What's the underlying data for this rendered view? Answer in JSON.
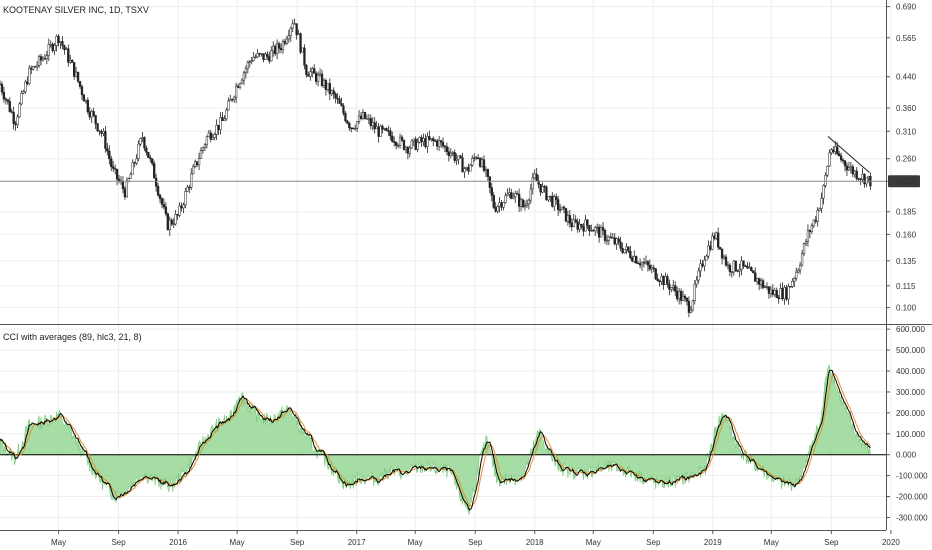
{
  "chart_data": [
    {
      "type": "candlestick",
      "title": "KOOTENAY SILVER INC, 1D, TSXV",
      "y_scale": "log",
      "ylim": [
        0.09,
        0.72
      ],
      "y_ticks": [
        "0.690",
        "0.565",
        "0.440",
        "0.360",
        "0.310",
        "0.260",
        "0.225",
        "0.185",
        "0.160",
        "0.135",
        "0.115",
        "0.100"
      ],
      "current_price": 0.225,
      "current_price_label": "0.225",
      "x_tick_labels": [
        "May",
        "Sep",
        "2016",
        "May",
        "Sep",
        "2017",
        "May",
        "Sep",
        "2018",
        "May",
        "Sep",
        "2019",
        "May",
        "Sep",
        "2020"
      ],
      "x_tick_dates": [
        "2015-05-01",
        "2015-09-01",
        "2016-01-01",
        "2016-05-01",
        "2016-09-01",
        "2017-01-01",
        "2017-05-01",
        "2017-09-01",
        "2018-01-01",
        "2018-05-01",
        "2018-09-01",
        "2019-01-01",
        "2019-05-01",
        "2019-09-01",
        "2020-01-01"
      ],
      "x_range": [
        "2015-01-01",
        "2019-12-22"
      ],
      "trendline": {
        "start": [
          "2019-08-25",
          0.3
        ],
        "end": [
          "2019-11-18",
          0.238
        ]
      },
      "price_path": [
        [
          "2015-01-01",
          0.42
        ],
        [
          "2015-02-01",
          0.33
        ],
        [
          "2015-03-01",
          0.45
        ],
        [
          "2015-04-01",
          0.5
        ],
        [
          "2015-05-01",
          0.57
        ],
        [
          "2015-06-01",
          0.46
        ],
        [
          "2015-07-01",
          0.36
        ],
        [
          "2015-08-01",
          0.3
        ],
        [
          "2015-08-20",
          0.24
        ],
        [
          "2015-09-15",
          0.21
        ],
        [
          "2015-10-20",
          0.3
        ],
        [
          "2015-11-15",
          0.23
        ],
        [
          "2015-12-10",
          0.17
        ],
        [
          "2016-01-01",
          0.18
        ],
        [
          "2016-02-01",
          0.24
        ],
        [
          "2016-03-01",
          0.3
        ],
        [
          "2016-04-01",
          0.33
        ],
        [
          "2016-05-01",
          0.42
        ],
        [
          "2016-06-01",
          0.5
        ],
        [
          "2016-07-01",
          0.5
        ],
        [
          "2016-08-01",
          0.54
        ],
        [
          "2016-08-25",
          0.64
        ],
        [
          "2016-09-20",
          0.46
        ],
        [
          "2016-10-20",
          0.43
        ],
        [
          "2016-11-20",
          0.38
        ],
        [
          "2016-12-20",
          0.32
        ],
        [
          "2017-01-15",
          0.34
        ],
        [
          "2017-02-15",
          0.31
        ],
        [
          "2017-03-15",
          0.3
        ],
        [
          "2017-04-15",
          0.28
        ],
        [
          "2017-05-15",
          0.29
        ],
        [
          "2017-06-15",
          0.29
        ],
        [
          "2017-07-15",
          0.27
        ],
        [
          "2017-08-15",
          0.24
        ],
        [
          "2017-09-05",
          0.27
        ],
        [
          "2017-09-25",
          0.23
        ],
        [
          "2017-10-10",
          0.19
        ],
        [
          "2017-11-15",
          0.21
        ],
        [
          "2017-12-10",
          0.19
        ],
        [
          "2018-01-01",
          0.23
        ],
        [
          "2018-01-20",
          0.21
        ],
        [
          "2018-02-20",
          0.19
        ],
        [
          "2018-03-20",
          0.17
        ],
        [
          "2018-04-20",
          0.17
        ],
        [
          "2018-05-20",
          0.16
        ],
        [
          "2018-06-20",
          0.15
        ],
        [
          "2018-07-20",
          0.14
        ],
        [
          "2018-08-20",
          0.13
        ],
        [
          "2018-09-20",
          0.12
        ],
        [
          "2018-10-20",
          0.11
        ],
        [
          "2018-11-15",
          0.1
        ],
        [
          "2018-12-15",
          0.14
        ],
        [
          "2019-01-05",
          0.16
        ],
        [
          "2019-02-01",
          0.13
        ],
        [
          "2019-03-01",
          0.13
        ],
        [
          "2019-04-01",
          0.12
        ],
        [
          "2019-05-01",
          0.11
        ],
        [
          "2019-06-01",
          0.11
        ],
        [
          "2019-06-25",
          0.13
        ],
        [
          "2019-07-15",
          0.16
        ],
        [
          "2019-08-01",
          0.18
        ],
        [
          "2019-08-15",
          0.21
        ],
        [
          "2019-08-30",
          0.28
        ],
        [
          "2019-09-20",
          0.26
        ],
        [
          "2019-10-15",
          0.24
        ],
        [
          "2019-11-20",
          0.225
        ]
      ]
    },
    {
      "type": "area",
      "title": "CCI with averages (89, hlc3, 21, 8)",
      "ylim": [
        -360,
        620
      ],
      "y_ticks": [
        "600.000",
        "500.000",
        "400.000",
        "300.000",
        "200.000",
        "100.000",
        "0.000",
        "-100.000",
        "-200.000",
        "-300.000"
      ],
      "series": [
        {
          "type": "area",
          "color": "#8fd48f",
          "role": "cci"
        },
        {
          "type": "line",
          "color": "#000000",
          "role": "average-fast"
        },
        {
          "type": "line",
          "color": "#e8922e",
          "role": "average-slow"
        }
      ],
      "cci_path": [
        [
          "2015-01-01",
          60
        ],
        [
          "2015-02-01",
          -20
        ],
        [
          "2015-03-01",
          140
        ],
        [
          "2015-04-01",
          160
        ],
        [
          "2015-05-01",
          190
        ],
        [
          "2015-06-01",
          90
        ],
        [
          "2015-07-01",
          -40
        ],
        [
          "2015-08-01",
          -140
        ],
        [
          "2015-08-25",
          -200
        ],
        [
          "2015-09-20",
          -160
        ],
        [
          "2015-10-20",
          -90
        ],
        [
          "2015-11-20",
          -130
        ],
        [
          "2015-12-20",
          -150
        ],
        [
          "2016-01-20",
          -70
        ],
        [
          "2016-02-20",
          60
        ],
        [
          "2016-03-20",
          140
        ],
        [
          "2016-04-20",
          180
        ],
        [
          "2016-05-05",
          300
        ],
        [
          "2016-06-05",
          200
        ],
        [
          "2016-07-05",
          160
        ],
        [
          "2016-08-15",
          220
        ],
        [
          "2016-09-10",
          120
        ],
        [
          "2016-10-10",
          20
        ],
        [
          "2016-11-10",
          -60
        ],
        [
          "2016-12-10",
          -150
        ],
        [
          "2017-01-10",
          -110
        ],
        [
          "2017-02-10",
          -120
        ],
        [
          "2017-03-10",
          -80
        ],
        [
          "2017-04-10",
          -90
        ],
        [
          "2017-05-10",
          -60
        ],
        [
          "2017-06-10",
          -70
        ],
        [
          "2017-07-10",
          -80
        ],
        [
          "2017-08-01",
          -200
        ],
        [
          "2017-08-20",
          -270
        ],
        [
          "2017-09-10",
          -30
        ],
        [
          "2017-09-25",
          70
        ],
        [
          "2017-10-15",
          -120
        ],
        [
          "2017-11-15",
          -120
        ],
        [
          "2017-12-10",
          -90
        ],
        [
          "2018-01-10",
          110
        ],
        [
          "2018-02-10",
          -40
        ],
        [
          "2018-03-10",
          -80
        ],
        [
          "2018-04-10",
          -90
        ],
        [
          "2018-05-10",
          -70
        ],
        [
          "2018-06-10",
          -60
        ],
        [
          "2018-07-10",
          -80
        ],
        [
          "2018-08-10",
          -110
        ],
        [
          "2018-09-10",
          -140
        ],
        [
          "2018-10-10",
          -130
        ],
        [
          "2018-11-10",
          -110
        ],
        [
          "2018-12-15",
          -80
        ],
        [
          "2019-01-10",
          150
        ],
        [
          "2019-01-25",
          200
        ],
        [
          "2019-02-20",
          40
        ],
        [
          "2019-03-20",
          -40
        ],
        [
          "2019-04-20",
          -90
        ],
        [
          "2019-05-20",
          -140
        ],
        [
          "2019-06-20",
          -140
        ],
        [
          "2019-07-10",
          -60
        ],
        [
          "2019-07-25",
          80
        ],
        [
          "2019-08-10",
          150
        ],
        [
          "2019-08-25",
          450
        ],
        [
          "2019-09-15",
          300
        ],
        [
          "2019-10-15",
          120
        ],
        [
          "2019-11-20",
          10
        ]
      ]
    }
  ]
}
